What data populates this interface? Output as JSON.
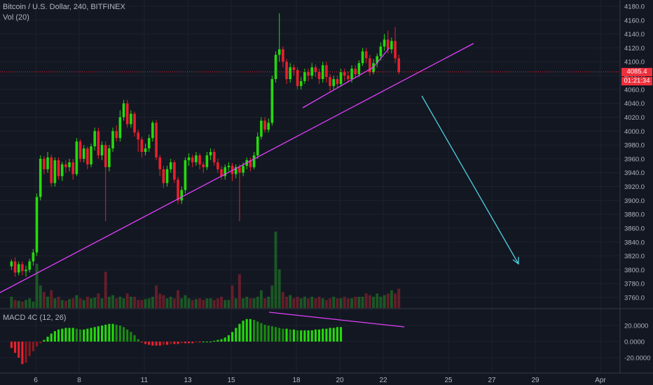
{
  "header": {
    "title": "Bitcoin / U.S. Dollar, 240, BITFINEX",
    "volume_label": "Vol (20)"
  },
  "macd_label": "MACD 4C (12, 26)",
  "last_price": "4085.4",
  "countdown": "01:21:34",
  "colors": {
    "background": "#131722",
    "up": "#26d90e",
    "down": "#e8212d",
    "trendline": "#e040fb",
    "arrow": "#4dd0e1"
  },
  "chart_data": [
    {
      "type": "candlestick",
      "y_ticks": [
        "3760.0",
        "3780.0",
        "3800.0",
        "3820.0",
        "3840.0",
        "3860.0",
        "3880.0",
        "3900.0",
        "3920.0",
        "3940.0",
        "3960.0",
        "3980.0",
        "4000.0",
        "4020.0",
        "4040.0",
        "4060.0",
        "4080.0",
        "4100.0",
        "4120.0",
        "4140.0",
        "4160.0",
        "4180.0"
      ],
      "ylim": [
        3750,
        4190
      ],
      "x_ticks": [
        "6",
        "8",
        "11",
        "13",
        "15",
        "18",
        "20",
        "22",
        "25",
        "27",
        "29",
        "Apr"
      ],
      "x_tick_days": [
        6,
        8,
        11,
        13,
        15,
        18,
        20,
        22,
        25,
        27,
        29,
        32
      ],
      "x_start_day": 4.8,
      "bars_per_day": 6,
      "last_price": 4085.4,
      "candles": [
        [
          3805,
          3812,
          3800,
          3815
        ],
        [
          3812,
          3796,
          3790,
          3818
        ],
        [
          3796,
          3808,
          3792,
          3812
        ],
        [
          3808,
          3798,
          3792,
          3812
        ],
        [
          3798,
          3800,
          3790,
          3806
        ],
        [
          3800,
          3812,
          3796,
          3816
        ],
        [
          3812,
          3825,
          3806,
          3830
        ],
        [
          3825,
          3905,
          3820,
          3910
        ],
        [
          3905,
          3960,
          3900,
          3965
        ],
        [
          3960,
          3945,
          3938,
          3964
        ],
        [
          3945,
          3962,
          3940,
          3970
        ],
        [
          3962,
          3925,
          3920,
          3966
        ],
        [
          3925,
          3958,
          3920,
          3962
        ],
        [
          3958,
          3935,
          3930,
          3962
        ],
        [
          3935,
          3952,
          3928,
          3956
        ],
        [
          3952,
          3948,
          3940,
          3958
        ],
        [
          3948,
          3955,
          3942,
          3960
        ],
        [
          3955,
          3938,
          3930,
          3960
        ],
        [
          3938,
          3985,
          3935,
          3990
        ],
        [
          3985,
          3960,
          3955,
          3988
        ],
        [
          3960,
          3975,
          3955,
          3980
        ],
        [
          3975,
          3952,
          3945,
          3978
        ],
        [
          3952,
          3978,
          3948,
          3982
        ],
        [
          3978,
          4000,
          3972,
          4005
        ],
        [
          4000,
          3965,
          3960,
          4005
        ],
        [
          3965,
          3980,
          3958,
          3985
        ],
        [
          3980,
          3948,
          3870,
          3985
        ],
        [
          3948,
          3975,
          3942,
          3980
        ],
        [
          3975,
          4000,
          3970,
          4005
        ],
        [
          4000,
          3990,
          3985,
          4008
        ],
        [
          3990,
          4020,
          3985,
          4030
        ],
        [
          4020,
          4040,
          4015,
          4045
        ],
        [
          4040,
          4010,
          4005,
          4045
        ],
        [
          4010,
          4025,
          4005,
          4030
        ],
        [
          4025,
          3998,
          3992,
          4028
        ],
        [
          3998,
          3988,
          3970,
          4002
        ],
        [
          3988,
          3970,
          3962,
          3992
        ],
        [
          3970,
          3975,
          3965,
          3982
        ],
        [
          3975,
          3990,
          3970,
          3995
        ],
        [
          3990,
          4012,
          3985,
          4015
        ],
        [
          4012,
          3962,
          3958,
          4016
        ],
        [
          3962,
          3945,
          3935,
          3966
        ],
        [
          3945,
          3925,
          3918,
          3950
        ],
        [
          3925,
          3945,
          3920,
          3950
        ],
        [
          3945,
          3955,
          3940,
          3960
        ],
        [
          3955,
          3930,
          3925,
          3958
        ],
        [
          3930,
          3900,
          3895,
          3934
        ],
        [
          3900,
          3915,
          3895,
          3920
        ],
        [
          3915,
          3958,
          3910,
          3962
        ],
        [
          3958,
          3962,
          3950,
          3968
        ],
        [
          3962,
          3955,
          3948,
          3966
        ],
        [
          3955,
          3965,
          3950,
          3970
        ],
        [
          3965,
          3952,
          3945,
          3968
        ],
        [
          3952,
          3948,
          3940,
          3956
        ],
        [
          3948,
          3965,
          3944,
          3970
        ],
        [
          3965,
          3970,
          3958,
          3975
        ],
        [
          3970,
          3955,
          3950,
          3974
        ],
        [
          3955,
          3945,
          3940,
          3960
        ],
        [
          3945,
          3935,
          3930,
          3950
        ],
        [
          3935,
          3948,
          3930,
          3952
        ],
        [
          3948,
          3950,
          3942,
          3955
        ],
        [
          3950,
          3938,
          3928,
          3954
        ],
        [
          3938,
          3948,
          3932,
          3952
        ],
        [
          3948,
          3940,
          3870,
          3952
        ],
        [
          3940,
          3950,
          3935,
          3955
        ],
        [
          3950,
          3958,
          3945,
          3962
        ],
        [
          3958,
          3948,
          3942,
          3962
        ],
        [
          3948,
          3965,
          3945,
          3970
        ],
        [
          3965,
          3992,
          3960,
          3998
        ],
        [
          3992,
          4015,
          3988,
          4020
        ],
        [
          4015,
          4002,
          3998,
          4020
        ],
        [
          4002,
          4012,
          3998,
          4018
        ],
        [
          4012,
          4075,
          4008,
          4080
        ],
        [
          4075,
          4110,
          4070,
          4115
        ],
        [
          4110,
          4118,
          4100,
          4170
        ],
        [
          4118,
          4100,
          4092,
          4122
        ],
        [
          4100,
          4075,
          4068,
          4104
        ],
        [
          4075,
          4092,
          4070,
          4098
        ],
        [
          4092,
          4088,
          4080,
          4096
        ],
        [
          4088,
          4065,
          4060,
          4092
        ],
        [
          4065,
          4072,
          4060,
          4078
        ],
        [
          4072,
          4085,
          4068,
          4090
        ],
        [
          4085,
          4080,
          4072,
          4090
        ],
        [
          4080,
          4092,
          4075,
          4098
        ],
        [
          4092,
          4085,
          4078,
          4096
        ],
        [
          4085,
          4075,
          4068,
          4090
        ],
        [
          4075,
          4095,
          4070,
          4100
        ],
        [
          4095,
          4078,
          4070,
          4100
        ],
        [
          4078,
          4065,
          4058,
          4082
        ],
        [
          4065,
          4075,
          4060,
          4080
        ],
        [
          4075,
          4068,
          4062,
          4080
        ],
        [
          4068,
          4085,
          4064,
          4090
        ],
        [
          4085,
          4080,
          4072,
          4090
        ],
        [
          4080,
          4075,
          4070,
          4086
        ],
        [
          4075,
          4090,
          4070,
          4095
        ],
        [
          4090,
          4082,
          4076,
          4095
        ],
        [
          4082,
          4098,
          4078,
          4102
        ],
        [
          4098,
          4115,
          4094,
          4120
        ],
        [
          4115,
          4105,
          4098,
          4120
        ],
        [
          4105,
          4085,
          4080,
          4110
        ],
        [
          4085,
          4098,
          4082,
          4104
        ],
        [
          4098,
          4108,
          4092,
          4112
        ],
        [
          4108,
          4122,
          4102,
          4128
        ],
        [
          4122,
          4132,
          4116,
          4140
        ],
        [
          4132,
          4118,
          4112,
          4145
        ],
        [
          4118,
          4130,
          4112,
          4135
        ],
        [
          4130,
          4105,
          4098,
          4150
        ],
        [
          4105,
          4085,
          4082,
          4110
        ]
      ],
      "volumes": [
        14,
        10,
        9,
        8,
        10,
        12,
        8,
        55,
        28,
        20,
        14,
        22,
        12,
        14,
        10,
        9,
        11,
        12,
        16,
        12,
        10,
        14,
        12,
        13,
        18,
        12,
        45,
        14,
        16,
        12,
        14,
        12,
        18,
        14,
        14,
        10,
        10,
        11,
        12,
        14,
        28,
        18,
        16,
        12,
        14,
        12,
        22,
        12,
        16,
        12,
        10,
        11,
        12,
        10,
        12,
        12,
        10,
        12,
        14,
        10,
        10,
        28,
        12,
        42,
        12,
        14,
        12,
        12,
        14,
        22,
        12,
        14,
        28,
        95,
        48,
        20,
        14,
        16,
        12,
        14,
        12,
        14,
        12,
        14,
        12,
        14,
        12,
        10,
        12,
        14,
        12,
        12,
        14,
        12,
        12,
        14,
        14,
        14,
        18,
        16,
        14,
        18,
        14,
        16,
        18,
        22,
        18,
        24
      ]
    },
    {
      "type": "histogram",
      "label": "MACD 4C (12, 26)",
      "y_ticks": [
        "20.0000",
        "0.0000",
        "-20.0000"
      ],
      "ylim": [
        -32,
        38
      ],
      "values": [
        -8,
        -14,
        -20,
        -28,
        -26,
        -18,
        -12,
        -6,
        -2,
        2,
        6,
        10,
        13,
        15,
        16,
        17,
        17,
        17,
        16,
        15,
        15,
        16,
        17,
        18,
        19,
        20,
        21,
        22,
        22,
        21,
        20,
        18,
        15,
        12,
        8,
        3,
        -1,
        -3,
        -4,
        -5,
        -5,
        -5,
        -4,
        -4,
        -3,
        -3,
        -3,
        -2,
        -2,
        -2,
        -2,
        -1,
        -1,
        0,
        0,
        0,
        1,
        2,
        3,
        5,
        8,
        12,
        17,
        22,
        26,
        28,
        28,
        27,
        25,
        23,
        21,
        20,
        19,
        18,
        17,
        16,
        16,
        15,
        15,
        14,
        14,
        14,
        14,
        14,
        15,
        15,
        16,
        16,
        17,
        17,
        18,
        18
      ],
      "start_bar": 0
    }
  ]
}
